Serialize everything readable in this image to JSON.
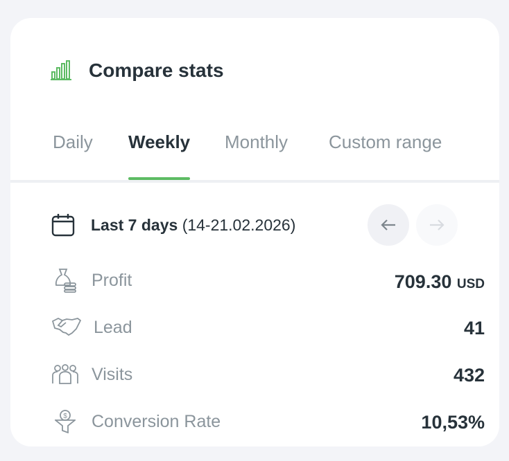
{
  "header": {
    "title": "Compare stats"
  },
  "tabs": {
    "items": [
      "Daily",
      "Weekly",
      "Monthly",
      "Custom range"
    ],
    "active": 1
  },
  "period": {
    "label": "Last 7 days",
    "range": "(14-21.02.2026)"
  },
  "stats": [
    {
      "label": "Profit",
      "value": "709.30",
      "unit": "USD"
    },
    {
      "label": "Lead",
      "value": 41
    },
    {
      "label": "Visits",
      "value": 432
    },
    {
      "label": "Conversion Rate",
      "value": "10,53%"
    }
  ]
}
